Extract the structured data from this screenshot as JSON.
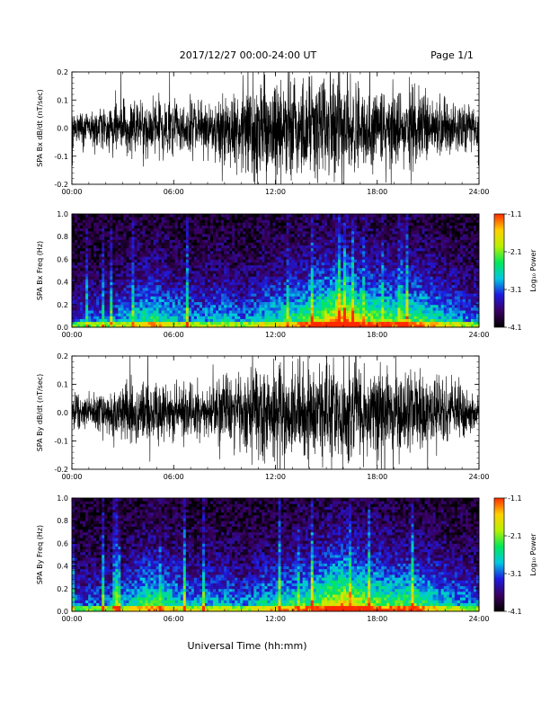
{
  "header": {
    "date_range": "2017/12/27  00:00-24:00 UT",
    "page": "Page 1/1"
  },
  "xlabel": "Universal Time (hh:mm)",
  "colors": {
    "trace": "#000000",
    "colormap": [
      "#000000",
      "#3a0060",
      "#1d1ae0",
      "#00c8e0",
      "#00e85a",
      "#b8f000",
      "#ffd000",
      "#ff2a00"
    ]
  },
  "chart_data": [
    {
      "type": "line",
      "id": "bx_ts",
      "ylabel": "SPA Bx dB/dt (nT/sec)",
      "xlim": [
        0,
        24
      ],
      "ylim": [
        -0.2,
        0.2
      ],
      "xticks": [
        "00:00",
        "06:00",
        "12:00",
        "18:00",
        "24:00"
      ],
      "yticks": [
        "0.2",
        "0.1",
        "0.0",
        "-0.1",
        "-0.2"
      ],
      "envelope": {
        "hours": [
          0,
          2,
          4,
          6,
          8,
          9,
          10,
          11,
          12,
          13,
          14,
          15,
          16,
          17,
          18,
          19,
          20,
          21,
          22,
          23,
          24
        ],
        "amplitude": [
          0.05,
          0.07,
          0.09,
          0.08,
          0.08,
          0.12,
          0.11,
          0.16,
          0.2,
          0.15,
          0.15,
          0.16,
          0.17,
          0.13,
          0.12,
          0.12,
          0.12,
          0.11,
          0.09,
          0.08,
          0.06
        ]
      }
    },
    {
      "type": "heatmap",
      "id": "bx_spec",
      "ylabel": "SPA Bx Freq (Hz)",
      "xlim": [
        0,
        24
      ],
      "ylim": [
        0,
        1.0
      ],
      "xticks": [
        "00:00",
        "06:00",
        "12:00",
        "18:00",
        "24:00"
      ],
      "yticks": [
        "1.0",
        "0.8",
        "0.6",
        "0.4",
        "0.2",
        "0.0"
      ],
      "colorbar": {
        "label": "Log₁₀ Power",
        "range": [
          -4.1,
          -1.1
        ],
        "ticks": [
          "-1.1",
          "-2.1",
          "-3.1",
          "-4.1"
        ]
      },
      "activity": {
        "hours": [
          0,
          2,
          3,
          4.5,
          6,
          7,
          8,
          9,
          10,
          11,
          12,
          13,
          14,
          15,
          16,
          17,
          18,
          19,
          20,
          21,
          22,
          23,
          24
        ],
        "level": [
          0.3,
          0.35,
          0.4,
          0.55,
          0.45,
          0.4,
          0.4,
          0.45,
          0.35,
          0.45,
          0.5,
          0.55,
          0.65,
          0.75,
          0.9,
          0.7,
          0.65,
          0.6,
          0.6,
          0.55,
          0.45,
          0.4,
          0.35
        ]
      }
    },
    {
      "type": "line",
      "id": "by_ts",
      "ylabel": "SPA By dB/dt (nT/sec)",
      "xlim": [
        0,
        24
      ],
      "ylim": [
        -0.2,
        0.2
      ],
      "xticks": [
        "00:00",
        "06:00",
        "12:00",
        "18:00",
        "24:00"
      ],
      "yticks": [
        "0.2",
        "0.1",
        "0.0",
        "-0.1",
        "-0.2"
      ],
      "envelope": {
        "hours": [
          0,
          2,
          4,
          6,
          8,
          9,
          10,
          11,
          12,
          13,
          14,
          15,
          16,
          17,
          18,
          19,
          20,
          21,
          22,
          23,
          24
        ],
        "amplitude": [
          0.05,
          0.07,
          0.1,
          0.09,
          0.07,
          0.12,
          0.11,
          0.14,
          0.16,
          0.15,
          0.14,
          0.15,
          0.15,
          0.13,
          0.13,
          0.13,
          0.12,
          0.11,
          0.1,
          0.08,
          0.06
        ]
      }
    },
    {
      "type": "heatmap",
      "id": "by_spec",
      "ylabel": "SPA By Freq (Hz)",
      "xlim": [
        0,
        24
      ],
      "ylim": [
        0,
        1.0
      ],
      "xticks": [
        "00:00",
        "06:00",
        "12:00",
        "18:00",
        "24:00"
      ],
      "yticks": [
        "1.0",
        "0.8",
        "0.6",
        "0.4",
        "0.2",
        "0.0"
      ],
      "colorbar": {
        "label": "Log₁₀ Power",
        "range": [
          -4.1,
          -1.1
        ],
        "ticks": [
          "-1.1",
          "-2.1",
          "-3.1",
          "-4.1"
        ]
      },
      "activity": {
        "hours": [
          0,
          2,
          3,
          4.5,
          6,
          7,
          8,
          9,
          10,
          11,
          12,
          13,
          14,
          15,
          16,
          17,
          18,
          19,
          20,
          21,
          22,
          23,
          24
        ],
        "level": [
          0.3,
          0.35,
          0.4,
          0.6,
          0.5,
          0.4,
          0.4,
          0.45,
          0.35,
          0.45,
          0.5,
          0.55,
          0.6,
          0.7,
          0.85,
          0.7,
          0.65,
          0.6,
          0.6,
          0.55,
          0.45,
          0.4,
          0.35
        ]
      }
    }
  ]
}
